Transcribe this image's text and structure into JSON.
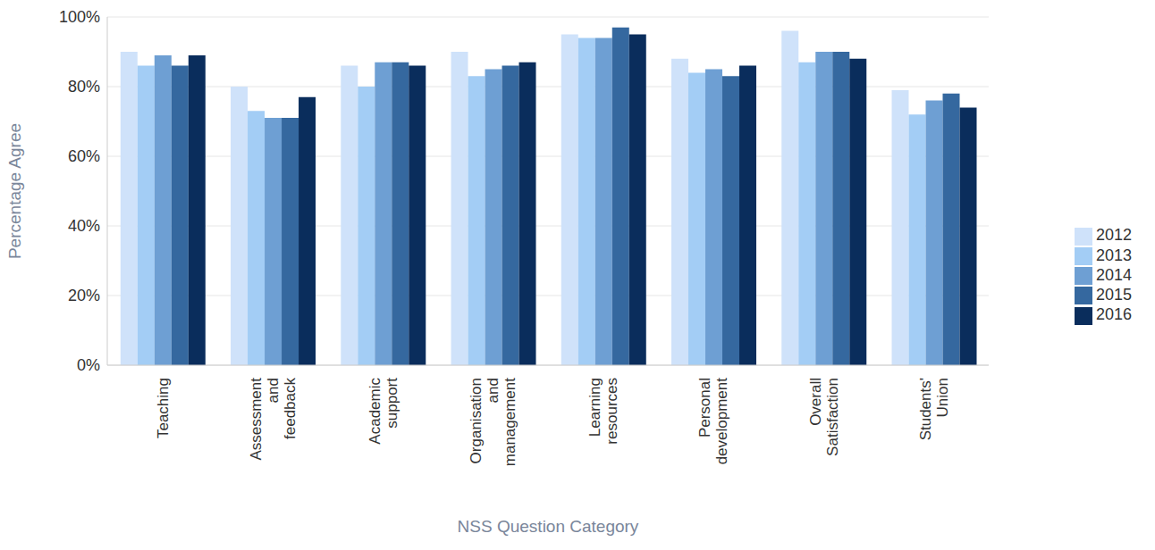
{
  "chart_data": {
    "type": "bar",
    "x_label": "NSS Question Category",
    "y_label": "Percentage Agree",
    "categories": [
      "Teaching",
      "Assessment and feedback",
      "Academic support",
      "Organisation and management",
      "Learning resources",
      "Personal development",
      "Overall Satisfaction",
      "Students' Union"
    ],
    "series": [
      {
        "name": "2012",
        "color": "#cfe2fa",
        "values": [
          90,
          80,
          86,
          90,
          95,
          88,
          96,
          79
        ]
      },
      {
        "name": "2013",
        "color": "#a3cdf5",
        "values": [
          86,
          73,
          80,
          83,
          94,
          84,
          87,
          72
        ]
      },
      {
        "name": "2014",
        "color": "#6e9fd3",
        "values": [
          89,
          71,
          87,
          85,
          94,
          85,
          90,
          76
        ]
      },
      {
        "name": "2015",
        "color": "#35689f",
        "values": [
          86,
          71,
          87,
          86,
          97,
          83,
          90,
          78
        ]
      },
      {
        "name": "2016",
        "color": "#0a2d5c",
        "values": [
          89,
          77,
          86,
          87,
          95,
          86,
          88,
          74
        ]
      }
    ],
    "ylim": [
      0,
      100
    ],
    "yticks": [
      {
        "value": 0,
        "label": "0%"
      },
      {
        "value": 20,
        "label": "20%"
      },
      {
        "value": 40,
        "label": "40%"
      },
      {
        "value": 60,
        "label": "60%"
      },
      {
        "value": 80,
        "label": "80%"
      },
      {
        "value": 100,
        "label": "100%"
      }
    ],
    "grid": true,
    "legend": "right"
  }
}
